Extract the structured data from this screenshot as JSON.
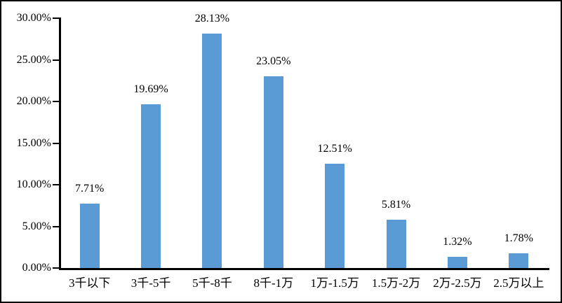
{
  "chart_data": {
    "type": "bar",
    "title": "",
    "xlabel": "",
    "ylabel": "",
    "categories": [
      "3千以下",
      "3千-5千",
      "5千-8千",
      "8千-1万",
      "1万-1.5万",
      "1.5万-2万",
      "2万-2.5万",
      "2.5万以上"
    ],
    "values": [
      7.71,
      19.69,
      28.13,
      23.05,
      12.51,
      5.81,
      1.32,
      1.78
    ],
    "data_labels": [
      "7.71%",
      "19.69%",
      "28.13%",
      "23.05%",
      "12.51%",
      "5.81%",
      "1.32%",
      "1.78%"
    ],
    "ylim": [
      0,
      30
    ],
    "ytick_step": 5,
    "ytick_labels": [
      "0.00%",
      "5.00%",
      "10.00%",
      "15.00%",
      "20.00%",
      "25.00%",
      "30.00%"
    ],
    "grid": false,
    "legend": "none",
    "colors": {
      "bar": "#5B9BD5",
      "axis": "#000000",
      "text": "#000000",
      "background": "#FFFFFF",
      "border": "#000000"
    }
  }
}
